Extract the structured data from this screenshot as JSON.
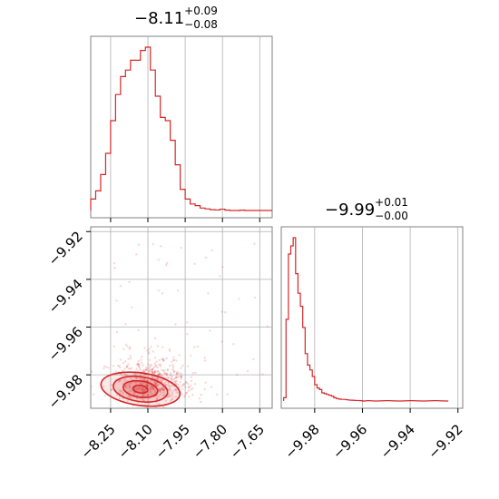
{
  "chart_data": [
    {
      "type": "histogram",
      "panel": "top-left marginal",
      "title": {
        "value": "−8.11",
        "plus": "+0.09",
        "minus": "−0.08"
      },
      "xlim": [
        -8.33,
        -7.6
      ],
      "bins": [
        [
          -8.33,
          0.07
        ],
        [
          -8.31,
          0.12
        ],
        [
          -8.29,
          0.22
        ],
        [
          -8.27,
          0.35
        ],
        [
          -8.25,
          0.55
        ],
        [
          -8.23,
          0.71
        ],
        [
          -8.21,
          0.82
        ],
        [
          -8.19,
          0.86
        ],
        [
          -8.17,
          0.92
        ],
        [
          -8.15,
          0.92
        ],
        [
          -8.13,
          0.98
        ],
        [
          -8.11,
          1.0
        ],
        [
          -8.09,
          0.86
        ],
        [
          -8.07,
          0.7
        ],
        [
          -8.05,
          0.57
        ],
        [
          -8.03,
          0.55
        ],
        [
          -8.01,
          0.43
        ],
        [
          -7.99,
          0.28
        ],
        [
          -7.97,
          0.13
        ],
        [
          -7.95,
          0.07
        ],
        [
          -7.93,
          0.04
        ],
        [
          -7.91,
          0.03
        ],
        [
          -7.89,
          0.015
        ],
        [
          -7.87,
          0.01
        ],
        [
          -7.85,
          0.005
        ],
        [
          -7.83,
          0.003
        ],
        [
          -7.81,
          0.008
        ],
        [
          -7.79,
          0.002
        ],
        [
          -7.77,
          0.0
        ],
        [
          -7.75,
          0.0
        ],
        [
          -7.73,
          0.002
        ],
        [
          -7.71,
          0.0
        ],
        [
          -7.69,
          0.0
        ],
        [
          -7.67,
          0.0
        ],
        [
          -7.65,
          0.0
        ],
        [
          -7.63,
          0.0
        ],
        [
          -7.61,
          0.0
        ]
      ],
      "binWidth": 0.02
    },
    {
      "type": "scatter",
      "panel": "bottom-left joint",
      "xlim": [
        -8.33,
        -7.6
      ],
      "ylim": [
        -9.994,
        -9.918
      ],
      "xticks": [
        "−8.25",
        "−8.10",
        "−7.95",
        "−7.80",
        "−7.65"
      ],
      "xtickValues": [
        -8.25,
        -8.1,
        -7.95,
        -7.8,
        -7.65
      ],
      "yticks": [
        "−9.92",
        "−9.94",
        "−9.96",
        "−9.98"
      ],
      "ytickValues": [
        -9.92,
        -9.94,
        -9.96,
        -9.98
      ],
      "contour_center": [
        -8.13,
        -9.986
      ],
      "contour_levels": [
        {
          "rx": 0.03,
          "ry": 0.0016
        },
        {
          "rx": 0.07,
          "ry": 0.0034
        },
        {
          "rx": 0.11,
          "ry": 0.0052
        },
        {
          "rx": 0.16,
          "ry": 0.0068
        }
      ]
    },
    {
      "type": "histogram",
      "panel": "bottom-right marginal",
      "title": {
        "value": "−9.99",
        "plus": "+0.01",
        "minus": "−0.00"
      },
      "xlim": [
        -9.994,
        -9.918
      ],
      "xticks": [
        "−9.98",
        "−9.96",
        "−9.94",
        "−9.92"
      ],
      "xtickValues": [
        -9.98,
        -9.96,
        -9.94,
        -9.92
      ],
      "bins": [
        [
          -9.993,
          0.02
        ],
        [
          -9.992,
          0.5
        ],
        [
          -9.991,
          0.9
        ],
        [
          -9.99,
          0.95
        ],
        [
          -9.989,
          1.0
        ],
        [
          -9.988,
          0.78
        ],
        [
          -9.987,
          0.66
        ],
        [
          -9.986,
          0.58
        ],
        [
          -9.985,
          0.45
        ],
        [
          -9.984,
          0.29
        ],
        [
          -9.983,
          0.22
        ],
        [
          -9.982,
          0.19
        ],
        [
          -9.981,
          0.15
        ],
        [
          -9.98,
          0.1
        ],
        [
          -9.979,
          0.08
        ],
        [
          -9.978,
          0.07
        ],
        [
          -9.977,
          0.05
        ],
        [
          -9.976,
          0.045
        ],
        [
          -9.975,
          0.04
        ],
        [
          -9.974,
          0.035
        ],
        [
          -9.973,
          0.03
        ],
        [
          -9.972,
          0.02
        ],
        [
          -9.971,
          0.015
        ],
        [
          -9.97,
          0.012
        ],
        [
          -9.969,
          0.01
        ],
        [
          -9.968,
          0.01
        ],
        [
          -9.967,
          0.008
        ],
        [
          -9.966,
          0.006
        ],
        [
          -9.965,
          0.005
        ],
        [
          -9.964,
          0.004
        ],
        [
          -9.963,
          0.003
        ],
        [
          -9.962,
          0.003
        ],
        [
          -9.961,
          0.002
        ],
        [
          -9.96,
          0.0
        ],
        [
          -9.958,
          0.002
        ],
        [
          -9.955,
          0.0
        ],
        [
          -9.95,
          0.002
        ],
        [
          -9.945,
          0.0
        ],
        [
          -9.94,
          0.002
        ],
        [
          -9.935,
          0.0
        ],
        [
          -9.93,
          0.002
        ],
        [
          -9.925,
          0.0
        ]
      ],
      "binWidth": 0.001
    }
  ],
  "colors": {
    "series": "#d62728",
    "grid": "#b0b0b0",
    "axes": "#808080"
  }
}
